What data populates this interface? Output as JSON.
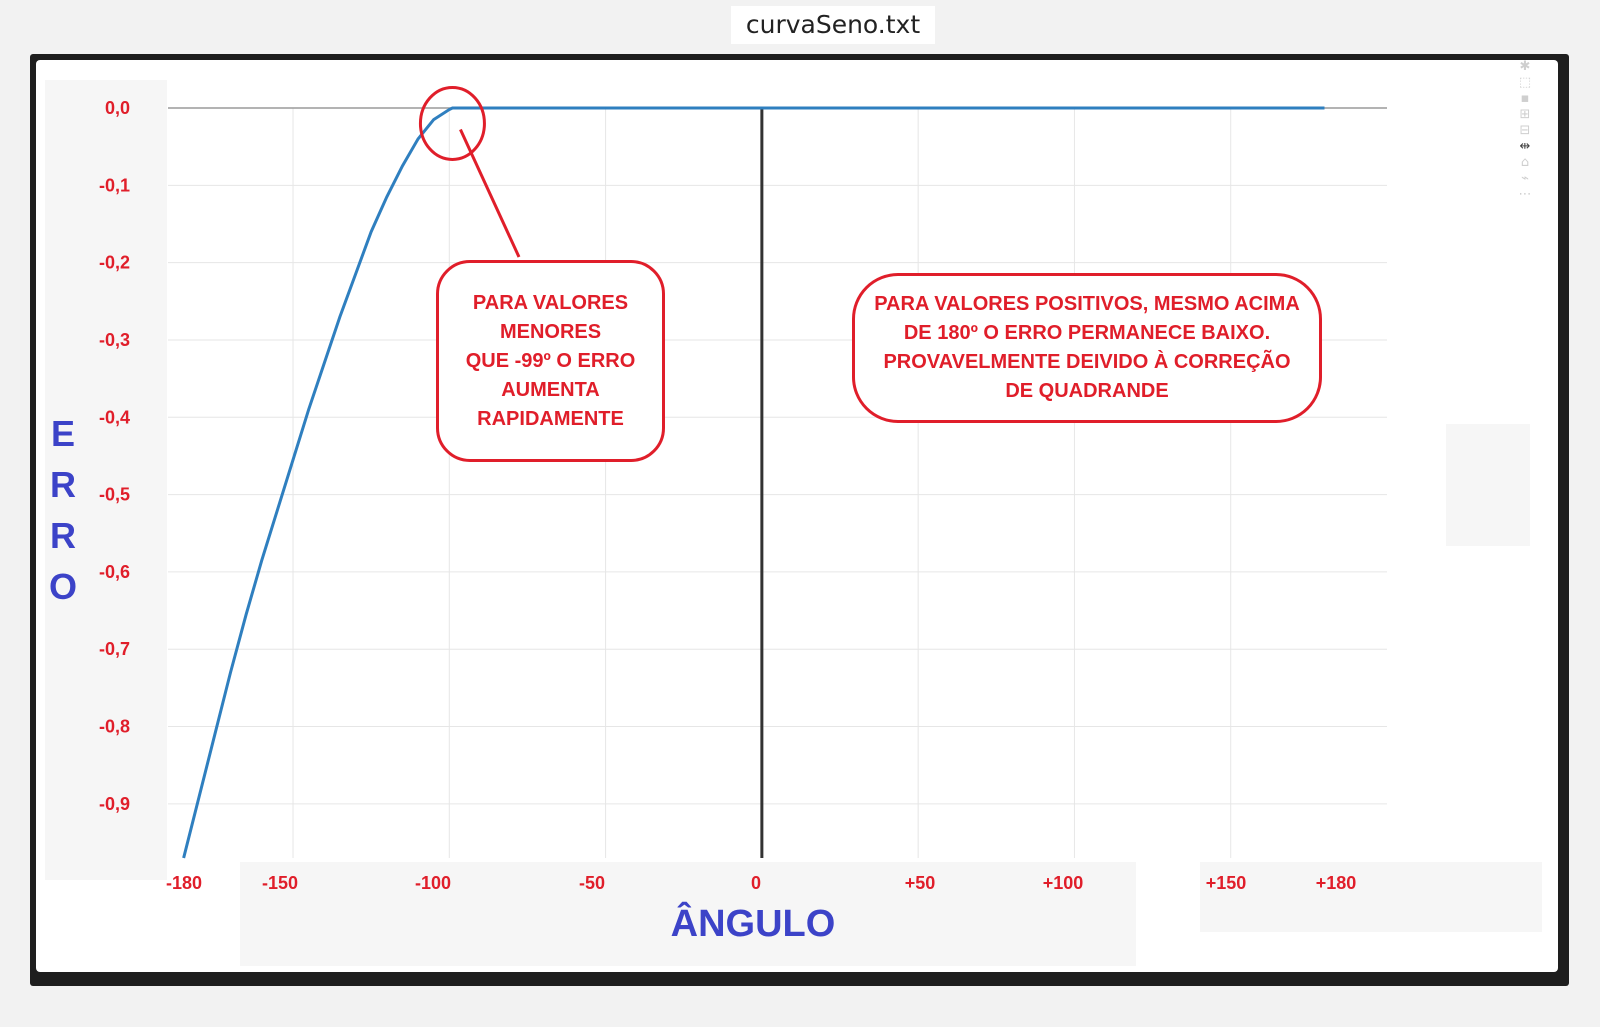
{
  "window": {
    "title": "curvaSeno.txt"
  },
  "colors": {
    "curve": "#2f7fbf",
    "annotation": "#e01e2a",
    "axis_title": "#3c43c8"
  },
  "toolbar": {
    "icons": [
      "camera-icon",
      "zoom-icon",
      "pan-icon",
      "zoom-in-icon",
      "zoom-out-icon",
      "autoscale-icon",
      "reset-axes-icon",
      "spike-lines-icon",
      "compare-icon"
    ]
  },
  "annotations": {
    "left_note": "PARA VALORES\nMENORES\nQUE -99º O ERRO\nAUMENTA\nRAPIDAMENTE",
    "right_note": "PARA VALORES POSITIVOS, MESMO ACIMA\nDE 180º O ERRO PERMANECE BAIXO.\nPROVAVELMENTE DEIVIDO À CORREÇÃO\nDE QUADRANDE"
  },
  "chart_data": {
    "type": "line",
    "title": "",
    "xlabel": "ÂNGULO",
    "ylabel_letters": [
      "E",
      "R",
      "R",
      "O"
    ],
    "x_tick_labels": [
      "-180",
      "-150",
      "-100",
      "-50",
      "0",
      "+50",
      "+100",
      "+150",
      "+180"
    ],
    "y_tick_labels": [
      "0,0",
      "-0,1",
      "-0,2",
      "-0,3",
      "-0,4",
      "-0,5",
      "-0,6",
      "-0,7",
      "-0,8",
      "-0,9"
    ],
    "y_ticks": [
      0,
      -0.1,
      -0.2,
      -0.3,
      -0.4,
      -0.5,
      -0.6,
      -0.7,
      -0.8,
      -0.9
    ],
    "xlim": [
      -190,
      200
    ],
    "ylim": [
      -0.97,
      0.0
    ],
    "grid": true,
    "series": [
      {
        "x": [
          -185,
          -180,
          -175,
          -170,
          -165,
          -160,
          -155,
          -150,
          -145,
          -140,
          -135,
          -130,
          -125,
          -120,
          -115,
          -110,
          -105,
          -100,
          -99,
          -90,
          -50,
          0,
          50,
          100,
          150,
          180
        ],
        "y": [
          -0.97,
          -0.89,
          -0.81,
          -0.73,
          -0.655,
          -0.585,
          -0.52,
          -0.455,
          -0.39,
          -0.33,
          -0.27,
          -0.215,
          -0.16,
          -0.115,
          -0.075,
          -0.04,
          -0.015,
          -0.002,
          0.0,
          0.0,
          0.0,
          0.0,
          0.0,
          0.0,
          0.0,
          0.0
        ]
      }
    ],
    "annotation_circle": {
      "x": -99,
      "y": -0.02
    }
  }
}
